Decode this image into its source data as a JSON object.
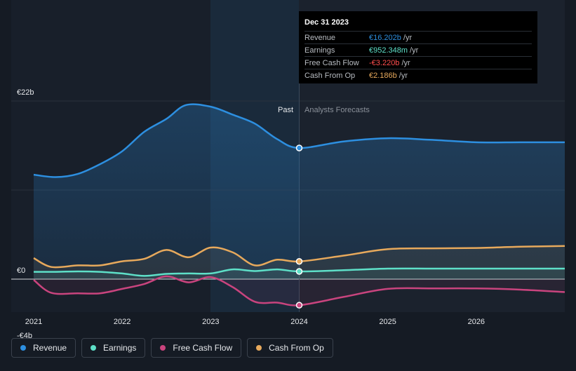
{
  "chart_data": {
    "type": "line",
    "title": "",
    "x_tick_labels": [
      "2021",
      "2022",
      "2023",
      "2024",
      "2025",
      "2026"
    ],
    "y_tick_labels": [
      "€22b",
      "€0",
      "-€4b"
    ],
    "ylim": [
      -4,
      22
    ],
    "xlim": [
      2021.0,
      2027.0
    ],
    "divider_labels": {
      "past": "Past",
      "forecast": "Analysts Forecasts"
    },
    "highlight_year": 2024.0,
    "series": [
      {
        "name": "Revenue",
        "key": "revenue",
        "color": "#2d8fe0",
        "points": [
          [
            2021.0,
            12.9
          ],
          [
            2021.25,
            12.6
          ],
          [
            2021.5,
            13.0
          ],
          [
            2021.75,
            14.2
          ],
          [
            2022.0,
            15.8
          ],
          [
            2022.25,
            18.2
          ],
          [
            2022.5,
            19.8
          ],
          [
            2022.72,
            21.5
          ],
          [
            2023.0,
            21.3
          ],
          [
            2023.25,
            20.3
          ],
          [
            2023.5,
            19.2
          ],
          [
            2023.75,
            17.3
          ],
          [
            2024.0,
            16.2
          ],
          [
            2024.5,
            17.0
          ],
          [
            2025.0,
            17.4
          ],
          [
            2025.5,
            17.2
          ],
          [
            2026.0,
            16.9
          ],
          [
            2026.5,
            16.9
          ],
          [
            2027.0,
            16.9
          ]
        ]
      },
      {
        "name": "Earnings",
        "key": "earnings",
        "color": "#5ee0c8",
        "points": [
          [
            2021.0,
            0.9
          ],
          [
            2021.25,
            0.9
          ],
          [
            2021.5,
            0.95
          ],
          [
            2021.75,
            0.9
          ],
          [
            2022.0,
            0.7
          ],
          [
            2022.25,
            0.4
          ],
          [
            2022.5,
            0.65
          ],
          [
            2022.75,
            0.7
          ],
          [
            2023.0,
            0.7
          ],
          [
            2023.25,
            1.2
          ],
          [
            2023.5,
            1.0
          ],
          [
            2023.75,
            1.2
          ],
          [
            2024.0,
            0.952
          ],
          [
            2024.5,
            1.1
          ],
          [
            2025.0,
            1.3
          ],
          [
            2025.5,
            1.3
          ],
          [
            2026.0,
            1.3
          ],
          [
            2026.5,
            1.3
          ],
          [
            2027.0,
            1.3
          ]
        ]
      },
      {
        "name": "Free Cash Flow",
        "key": "fcf",
        "color": "#c9447e",
        "points": [
          [
            2021.0,
            -0.1
          ],
          [
            2021.2,
            -1.7
          ],
          [
            2021.5,
            -1.75
          ],
          [
            2021.75,
            -1.75
          ],
          [
            2022.0,
            -1.2
          ],
          [
            2022.25,
            -0.6
          ],
          [
            2022.5,
            0.35
          ],
          [
            2022.75,
            -0.4
          ],
          [
            2023.0,
            0.25
          ],
          [
            2023.25,
            -1.0
          ],
          [
            2023.5,
            -2.8
          ],
          [
            2023.75,
            -2.9
          ],
          [
            2024.0,
            -3.22
          ],
          [
            2024.5,
            -2.2
          ],
          [
            2025.0,
            -1.2
          ],
          [
            2025.5,
            -1.15
          ],
          [
            2026.0,
            -1.15
          ],
          [
            2026.5,
            -1.3
          ],
          [
            2027.0,
            -1.6
          ]
        ]
      },
      {
        "name": "Cash From Op",
        "key": "cfo",
        "color": "#e7a95c",
        "points": [
          [
            2021.0,
            2.6
          ],
          [
            2021.2,
            1.5
          ],
          [
            2021.5,
            1.7
          ],
          [
            2021.75,
            1.7
          ],
          [
            2022.0,
            2.2
          ],
          [
            2022.25,
            2.5
          ],
          [
            2022.5,
            3.6
          ],
          [
            2022.75,
            2.7
          ],
          [
            2023.0,
            3.9
          ],
          [
            2023.25,
            3.3
          ],
          [
            2023.5,
            1.7
          ],
          [
            2023.75,
            2.4
          ],
          [
            2024.0,
            2.186
          ],
          [
            2024.5,
            2.9
          ],
          [
            2025.0,
            3.7
          ],
          [
            2025.5,
            3.8
          ],
          [
            2026.0,
            3.85
          ],
          [
            2026.5,
            4.0
          ],
          [
            2027.0,
            4.1
          ]
        ]
      }
    ]
  },
  "tooltip": {
    "date": "Dec 31 2023",
    "unit": "/yr",
    "rows": [
      {
        "label": "Revenue",
        "value": "€16.202b",
        "color": "#2d8fe0"
      },
      {
        "label": "Earnings",
        "value": "€952.348m",
        "color": "#5ee0c8"
      },
      {
        "label": "Free Cash Flow",
        "value": "-€3.220b",
        "color": "#ff4d4d"
      },
      {
        "label": "Cash From Op",
        "value": "€2.186b",
        "color": "#e7a95c"
      }
    ]
  },
  "legend": [
    {
      "label": "Revenue",
      "color": "#2d8fe0"
    },
    {
      "label": "Earnings",
      "color": "#5ee0c8"
    },
    {
      "label": "Free Cash Flow",
      "color": "#c9447e"
    },
    {
      "label": "Cash From Op",
      "color": "#e7a95c"
    }
  ]
}
